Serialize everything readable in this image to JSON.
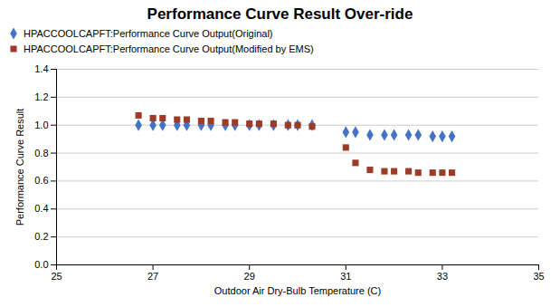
{
  "chart_data": {
    "type": "scatter",
    "title": "Performance Curve Result Over-ride",
    "xlabel": "Outdoor Air Dry-Bulb Temperature (C)",
    "ylabel": "Performance Curve Result",
    "xlim": [
      25,
      35
    ],
    "ylim": [
      0,
      1.4
    ],
    "xticks": [
      25,
      27,
      29,
      31,
      33,
      35
    ],
    "yticks": [
      {
        "value": 0,
        "label": "0.0"
      },
      0.2,
      0.4,
      0.6,
      0.8,
      {
        "value": 1.0,
        "label": "1.0"
      },
      1.2,
      1.4
    ],
    "grid": "y",
    "legend": "upper left",
    "x": [
      26.7,
      27.0,
      27.2,
      27.5,
      27.7,
      28.0,
      28.2,
      28.5,
      28.7,
      29.0,
      29.2,
      29.5,
      29.8,
      30.0,
      30.3,
      31.0,
      31.2,
      31.5,
      31.8,
      32.0,
      32.3,
      32.5,
      32.8,
      33.0,
      33.2
    ],
    "series": [
      {
        "name": "HPACCOOLCAPFT:Performance Curve Output(Original)",
        "color": "#4472c4",
        "marker": "diamond",
        "values": [
          1.0,
          1.0,
          1.0,
          1.0,
          1.0,
          1.0,
          1.0,
          1.0,
          1.0,
          1.0,
          1.0,
          1.0,
          1.0,
          1.0,
          1.0,
          0.95,
          0.95,
          0.93,
          0.93,
          0.93,
          0.93,
          0.93,
          0.92,
          0.92,
          0.92
        ]
      },
      {
        "name": "HPACCOOLCAPFT:Performance Curve Output(Modified by EMS)",
        "color": "#9e3b26",
        "marker": "square",
        "values": [
          1.07,
          1.05,
          1.05,
          1.04,
          1.04,
          1.03,
          1.03,
          1.02,
          1.02,
          1.01,
          1.01,
          1.01,
          1.0,
          1.0,
          0.99,
          0.84,
          0.73,
          0.68,
          0.67,
          0.67,
          0.67,
          0.66,
          0.66,
          0.66,
          0.66
        ]
      }
    ]
  }
}
